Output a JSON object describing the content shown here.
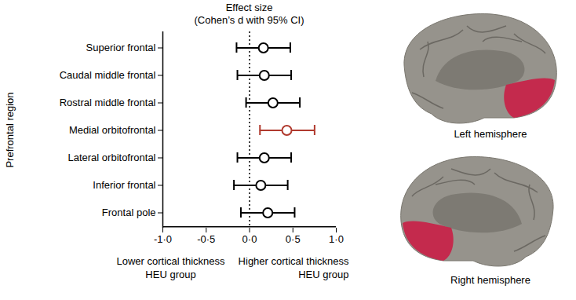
{
  "chart_data": {
    "type": "forest",
    "title": "Effect size",
    "subtitle": "(Cohen’s d with 95% CI)",
    "y_label": "Prefrontal region",
    "categories": [
      "Superior frontal",
      "Caudal middle frontal",
      "Rostral middle frontal",
      "Medial orbitofrontal",
      "Lateral orbitofrontal",
      "Inferior frontal",
      "Frontal pole"
    ],
    "values": [
      0.16,
      0.17,
      0.27,
      0.43,
      0.17,
      0.13,
      0.21
    ],
    "ci_lower": [
      -0.15,
      -0.14,
      -0.04,
      0.12,
      -0.14,
      -0.18,
      -0.1
    ],
    "ci_upper": [
      0.47,
      0.48,
      0.58,
      0.75,
      0.48,
      0.44,
      0.52
    ],
    "colors": [
      "#000000",
      "#000000",
      "#000000",
      "#b03a2e",
      "#000000",
      "#000000",
      "#000000"
    ],
    "marker": "open circle",
    "xlim": [
      -1,
      1
    ],
    "xticks": [
      {
        "value": -1,
        "label": "-1·0"
      },
      {
        "value": -0.5,
        "label": "-0·5"
      },
      {
        "value": 0,
        "label": "0·0"
      },
      {
        "value": 0.5,
        "label": "0·5"
      },
      {
        "value": 1,
        "label": "1·0"
      }
    ],
    "reference_x": 0,
    "annotations": [
      "Lower cortical thickness\nHEU group",
      "Higher cortical thickness\nHEU group"
    ]
  },
  "images": [
    {
      "label": "Left hemisphere"
    },
    {
      "label": "Right hemisphere"
    }
  ]
}
